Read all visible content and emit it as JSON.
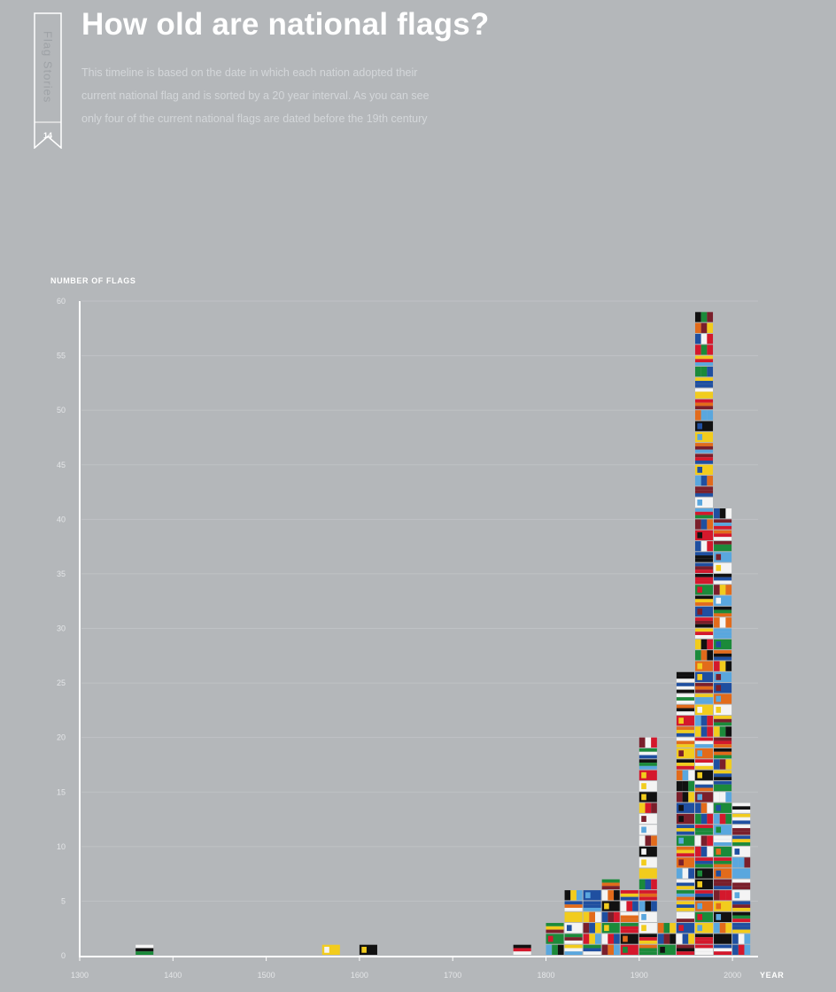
{
  "series": {
    "name": "Flag Stories",
    "number": "14"
  },
  "title": "How old are national flags?",
  "subtitle": [
    "This timeline is based on the date in which each nation adopted their",
    "current national flag and is sorted by a 20 year interval. As you can see",
    "only four of the current national flags are dated before the 19th century"
  ],
  "colors": {
    "background": "#b4b7ba",
    "axis": "#ffffff",
    "flag_palette": [
      "#d4182c",
      "#1b8a3a",
      "#1f4fa0",
      "#f2cc1d",
      "#f4f4f4",
      "#111111",
      "#5aa7de",
      "#e26b1b",
      "#7a1f2b"
    ]
  },
  "chart_data": {
    "type": "bar",
    "title": "How old are national flags?",
    "ylabel": "NUMBER OF FLAGS",
    "xlabel": "YEAR",
    "ylim": [
      0,
      60
    ],
    "xlim": [
      1300,
      2020
    ],
    "yticks": [
      0,
      5,
      10,
      15,
      20,
      25,
      30,
      35,
      40,
      45,
      50,
      55,
      60
    ],
    "xticks": [
      1300,
      1400,
      1500,
      1600,
      1700,
      1800,
      1900,
      2000
    ],
    "bar_width_years": 20,
    "bars": [
      {
        "x": 1370,
        "value": 1
      },
      {
        "x": 1570,
        "value": 1
      },
      {
        "x": 1610,
        "value": 1
      },
      {
        "x": 1775,
        "value": 1
      },
      {
        "x": 1810,
        "value": 3
      },
      {
        "x": 1830,
        "value": 6
      },
      {
        "x": 1850,
        "value": 6
      },
      {
        "x": 1870,
        "value": 7
      },
      {
        "x": 1890,
        "value": 6
      },
      {
        "x": 1910,
        "value": 20
      },
      {
        "x": 1930,
        "value": 3
      },
      {
        "x": 1950,
        "value": 26
      },
      {
        "x": 1970,
        "value": 59
      },
      {
        "x": 1990,
        "value": 41
      },
      {
        "x": 2010,
        "value": 14
      }
    ]
  }
}
